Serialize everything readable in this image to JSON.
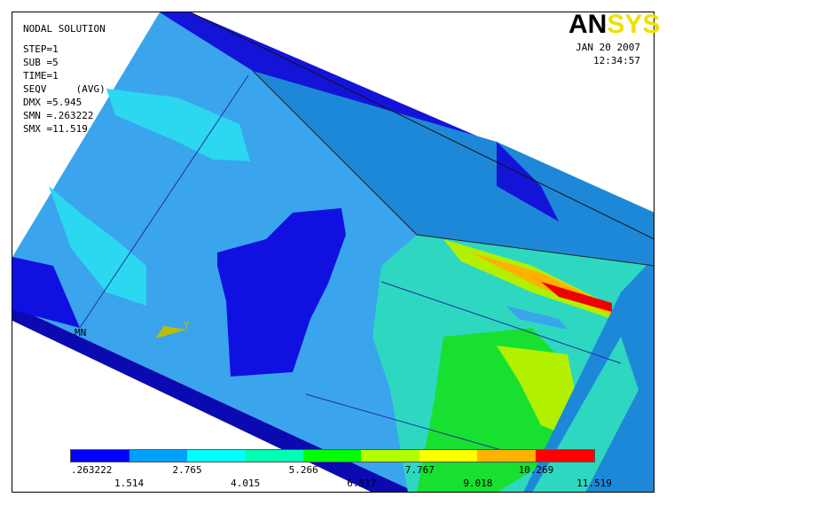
{
  "header": {
    "info": [
      "NODAL SOLUTION",
      "STEP=1",
      "SUB =5",
      "TIME=1",
      "SEQV     (AVG)",
      "DMX =5.945",
      "SMN =.263222",
      "SMX =11.519"
    ],
    "logo": [
      "AN",
      "SYS"
    ],
    "date": "JAN 20 2007",
    "time": "12:34:57"
  },
  "triad": {
    "axis": "Y",
    "node": "MN"
  },
  "legend": {
    "labels": [
      ".263222",
      "1.514",
      "2.765",
      "4.015",
      "5.266",
      "6.517",
      "7.767",
      "9.018",
      "10.269",
      "11.519"
    ]
  }
}
